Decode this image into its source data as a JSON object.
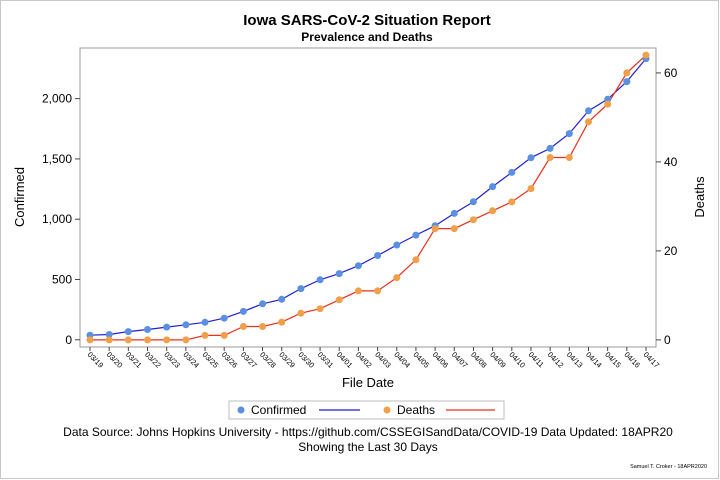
{
  "chart_data": {
    "type": "line",
    "title": "Iowa SARS-CoV-2 Situation Report",
    "subtitle": "Prevalence and Deaths",
    "xlabel": "File Date",
    "ylabel_left": "Confirmed",
    "ylabel_right": "Deaths",
    "categories": [
      "03/19",
      "03/20",
      "03/21",
      "03/22",
      "03/23",
      "03/24",
      "03/25",
      "03/26",
      "03/27",
      "03/28",
      "03/29",
      "03/30",
      "03/31",
      "04/01",
      "04/02",
      "04/03",
      "04/04",
      "04/05",
      "04/06",
      "04/07",
      "04/08",
      "04/09",
      "04/10",
      "04/11",
      "04/12",
      "04/13",
      "04/14",
      "04/15",
      "04/16",
      "04/17"
    ],
    "y_left": {
      "ticks": [
        "0",
        "500",
        "1,000",
        "1,500",
        "2,000"
      ],
      "tick_values": [
        0,
        500,
        1000,
        1500,
        2000
      ],
      "range": [
        -60,
        2420
      ]
    },
    "y_right": {
      "ticks": [
        "0",
        "20",
        "40",
        "60"
      ],
      "tick_values": [
        0,
        20,
        40,
        60
      ],
      "range": [
        -1.6,
        65.6
      ]
    },
    "series": [
      {
        "name": "Confirmed",
        "axis": "left",
        "color": "#1f1fd6",
        "marker_color": "#5b8fe0",
        "values": [
          38,
          44,
          68,
          85,
          105,
          124,
          145,
          179,
          235,
          298,
          336,
          424,
          497,
          549,
          614,
          699,
          786,
          868,
          946,
          1048,
          1145,
          1270,
          1388,
          1510,
          1587,
          1710,
          1899,
          1995,
          2141,
          2332
        ]
      },
      {
        "name": "Deaths",
        "axis": "right",
        "color": "#e8301c",
        "marker_color": "#f0a04b",
        "values": [
          0,
          0,
          0,
          0,
          0,
          0,
          1,
          1,
          3,
          3,
          4,
          6,
          7,
          9,
          11,
          11,
          14,
          18,
          25,
          25,
          27,
          29,
          31,
          34,
          41,
          41,
          49,
          53,
          60,
          64
        ]
      }
    ],
    "legend_placement": "bottom",
    "grid": false
  },
  "footer": {
    "source": "Data Source: Johns Hopkins University - https://github.com/CSSEGISandData/COVID-19 Data Updated: 18APR20",
    "window": "Showing the Last 30 Days",
    "credit": "Samuel T. Croker - 18APR2020"
  }
}
